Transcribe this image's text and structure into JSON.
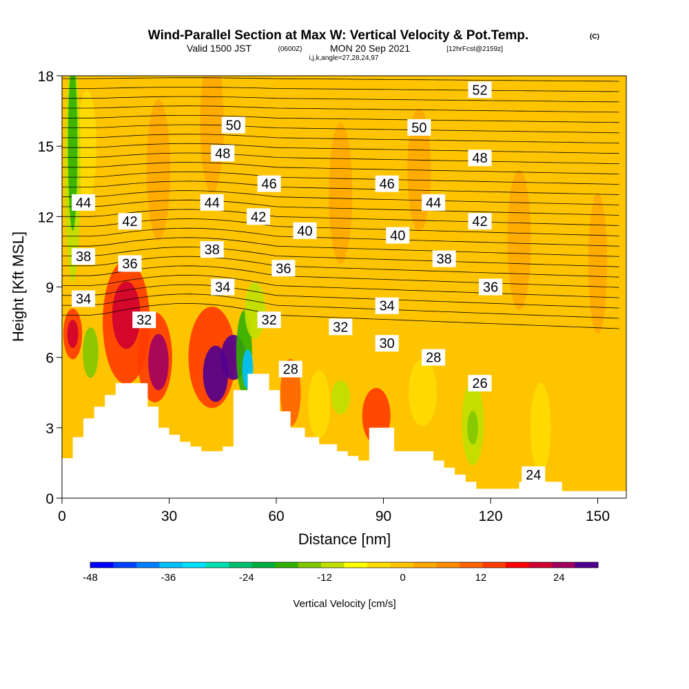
{
  "header": {
    "title": "Wind-Parallel Section at Max W: Vertical Velocity & Pot.Temp.",
    "copyright": "(C)",
    "valid_prefix": "Valid 1500 JST",
    "valid_utc": "(0600Z)",
    "valid_date": "MON 20 Sep 2021",
    "forecast": "[12hrFcst@2159z]",
    "indices": "i,j,k,angle=27,28,24,97"
  },
  "colors": {
    "background": "#ffc400",
    "terrain": "#ffffff",
    "contour": "#000000",
    "colorbar": [
      "#0000ff",
      "#0040ff",
      "#0080ff",
      "#00c0ff",
      "#00e0ff",
      "#00e0b0",
      "#00c070",
      "#00b040",
      "#30b000",
      "#80c800",
      "#c0e000",
      "#ffff00",
      "#ffdc00",
      "#ffc400",
      "#ffa800",
      "#ff8c00",
      "#ff6400",
      "#ff3c00",
      "#ff0000",
      "#d00030",
      "#a00060",
      "#500090"
    ]
  },
  "chart_data": {
    "type": "heatmap",
    "xlabel": "Distance [nm]",
    "ylabel": "Height [Kft MSL]",
    "xlim": [
      0,
      158
    ],
    "ylim": [
      0,
      18
    ],
    "x_ticks": [
      0,
      30,
      60,
      90,
      120,
      150
    ],
    "y_ticks": [
      0,
      3,
      6,
      9,
      12,
      15,
      18
    ],
    "colorbar": {
      "label": "Vertical Velocity [cm/s]",
      "min": -48,
      "max": 30,
      "tick_labels": [
        "-48",
        "-36",
        "-24",
        "-12",
        "0",
        "12",
        "24"
      ],
      "tick_values": [
        -48,
        -36,
        -24,
        -12,
        0,
        12,
        24
      ]
    },
    "terrain": [
      [
        0,
        1.7
      ],
      [
        3,
        1.7
      ],
      [
        3,
        2.6
      ],
      [
        6,
        2.6
      ],
      [
        6,
        3.4
      ],
      [
        9,
        3.4
      ],
      [
        9,
        3.9
      ],
      [
        12,
        3.9
      ],
      [
        12,
        4.4
      ],
      [
        15,
        4.4
      ],
      [
        15,
        4.9
      ],
      [
        24,
        4.9
      ],
      [
        24,
        3.9
      ],
      [
        27,
        3.9
      ],
      [
        27,
        3.0
      ],
      [
        30,
        3.0
      ],
      [
        30,
        2.7
      ],
      [
        33,
        2.7
      ],
      [
        33,
        2.4
      ],
      [
        36,
        2.4
      ],
      [
        36,
        2.2
      ],
      [
        39,
        2.2
      ],
      [
        39,
        2.0
      ],
      [
        45,
        2.0
      ],
      [
        45,
        2.2
      ],
      [
        48,
        2.2
      ],
      [
        48,
        4.6
      ],
      [
        52,
        4.6
      ],
      [
        52,
        5.3
      ],
      [
        58,
        5.3
      ],
      [
        58,
        4.6
      ],
      [
        61,
        4.6
      ],
      [
        61,
        3.7
      ],
      [
        64,
        3.7
      ],
      [
        64,
        3.0
      ],
      [
        68,
        3.0
      ],
      [
        68,
        2.6
      ],
      [
        72,
        2.6
      ],
      [
        72,
        2.3
      ],
      [
        77,
        2.3
      ],
      [
        77,
        2.0
      ],
      [
        80,
        2.0
      ],
      [
        80,
        1.8
      ],
      [
        83,
        1.8
      ],
      [
        83,
        1.6
      ],
      [
        86,
        1.6
      ],
      [
        86,
        3.0
      ],
      [
        93,
        3.0
      ],
      [
        93,
        2.0
      ],
      [
        104,
        2.0
      ],
      [
        104,
        1.6
      ],
      [
        107,
        1.6
      ],
      [
        107,
        1.3
      ],
      [
        110,
        1.3
      ],
      [
        110,
        1.0
      ],
      [
        113,
        1.0
      ],
      [
        113,
        0.7
      ],
      [
        116,
        0.7
      ],
      [
        116,
        0.4
      ],
      [
        128,
        0.4
      ],
      [
        128,
        0.7
      ],
      [
        140,
        0.7
      ],
      [
        140,
        0.3
      ],
      [
        158,
        0.3
      ]
    ],
    "contour_labels": [
      {
        "text": "52",
        "x": 117,
        "y": 17.4
      },
      {
        "text": "50",
        "x": 48,
        "y": 15.9
      },
      {
        "text": "50",
        "x": 100,
        "y": 15.8
      },
      {
        "text": "48",
        "x": 45,
        "y": 14.7
      },
      {
        "text": "48",
        "x": 117,
        "y": 14.5
      },
      {
        "text": "46",
        "x": 58,
        "y": 13.4
      },
      {
        "text": "46",
        "x": 91,
        "y": 13.4
      },
      {
        "text": "44",
        "x": 6,
        "y": 12.6
      },
      {
        "text": "44",
        "x": 42,
        "y": 12.6
      },
      {
        "text": "44",
        "x": 104,
        "y": 12.6
      },
      {
        "text": "42",
        "x": 19,
        "y": 11.8
      },
      {
        "text": "42",
        "x": 55,
        "y": 12.0
      },
      {
        "text": "42",
        "x": 117,
        "y": 11.8
      },
      {
        "text": "40",
        "x": 68,
        "y": 11.4
      },
      {
        "text": "40",
        "x": 94,
        "y": 11.2
      },
      {
        "text": "38",
        "x": 6,
        "y": 10.3
      },
      {
        "text": "38",
        "x": 42,
        "y": 10.6
      },
      {
        "text": "38",
        "x": 107,
        "y": 10.2
      },
      {
        "text": "36",
        "x": 19,
        "y": 10.0
      },
      {
        "text": "36",
        "x": 62,
        "y": 9.8
      },
      {
        "text": "36",
        "x": 120,
        "y": 9.0
      },
      {
        "text": "34",
        "x": 6,
        "y": 8.5
      },
      {
        "text": "34",
        "x": 45,
        "y": 9.0
      },
      {
        "text": "34",
        "x": 91,
        "y": 8.2
      },
      {
        "text": "32",
        "x": 23,
        "y": 7.6
      },
      {
        "text": "32",
        "x": 58,
        "y": 7.6
      },
      {
        "text": "32",
        "x": 78,
        "y": 7.3
      },
      {
        "text": "30",
        "x": 91,
        "y": 6.6
      },
      {
        "text": "28",
        "x": 64,
        "y": 5.5
      },
      {
        "text": "28",
        "x": 104,
        "y": 6.0
      },
      {
        "text": "26",
        "x": 117,
        "y": 4.9
      },
      {
        "text": "24",
        "x": 132,
        "y": 1.0
      }
    ]
  }
}
